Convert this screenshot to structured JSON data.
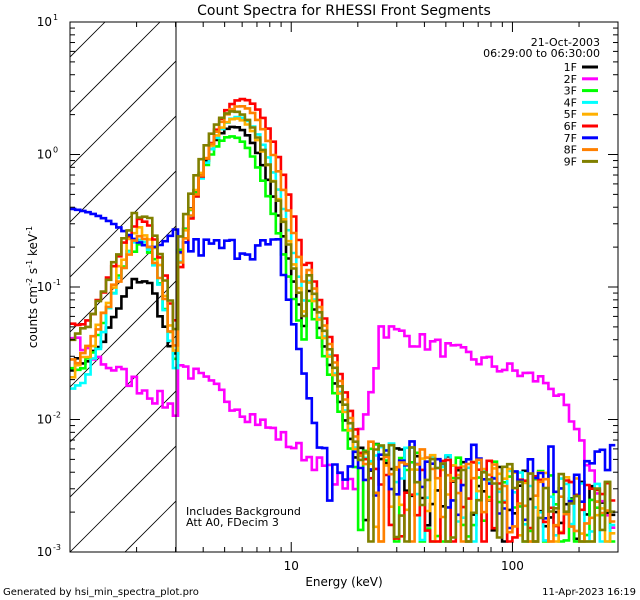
{
  "chart_data": {
    "type": "line",
    "title": "Count Spectra for RHESSI Front Segments",
    "xlabel": "Energy (keV)",
    "ylabel_main": "counts cm",
    "ylabel_sup1": "-2",
    "ylabel_mid": " s",
    "ylabel_sup2": "-1",
    "ylabel_mid2": " keV",
    "ylabel_sup3": "-1",
    "xscale": "log",
    "yscale": "log",
    "xlim": [
      1,
      300
    ],
    "ylim": [
      0.001,
      10
    ],
    "x_ticks": [
      {
        "value": 1,
        "label": ""
      },
      {
        "value": 10,
        "label": "10"
      },
      {
        "value": 100,
        "label": "100"
      }
    ],
    "y_ticks": [
      {
        "value": 0.001,
        "base": "10",
        "exp": "-3"
      },
      {
        "value": 0.01,
        "base": "10",
        "exp": "-2"
      },
      {
        "value": 0.1,
        "base": "10",
        "exp": "-1"
      },
      {
        "value": 1,
        "base": "10",
        "exp": "0"
      },
      {
        "value": 10,
        "base": "10",
        "exp": "1"
      }
    ],
    "hatched_region": [
      1,
      3
    ],
    "date": "21-Oct-2003",
    "time_range": "06:29:00 to 06:30:00",
    "annotations": [
      "Includes Background",
      "Att A0, FDecim 3"
    ],
    "footer_left": "Generated by hsi_min_spectra_plot.pro",
    "footer_right": "11-Apr-2023 16:19",
    "legend": [
      {
        "name": "1F",
        "color": "#000000"
      },
      {
        "name": "2F",
        "color": "#ff00ff"
      },
      {
        "name": "3F",
        "color": "#00ff00"
      },
      {
        "name": "4F",
        "color": "#00ffff"
      },
      {
        "name": "5F",
        "color": "#ffb000"
      },
      {
        "name": "6F",
        "color": "#ff0000"
      },
      {
        "name": "7F",
        "color": "#0000ff"
      },
      {
        "name": "8F",
        "color": "#ff8000"
      },
      {
        "name": "9F",
        "color": "#808000"
      }
    ],
    "series_params": {
      "1F": {
        "peak": 1.6,
        "low": 0.09,
        "dip": 0.025,
        "shift": 0.0
      },
      "2F": {
        "peak": 0.015,
        "low": 0.04,
        "dip": 0.009,
        "shift": 0.0
      },
      "3F": {
        "peak": 1.35,
        "low": 0.2,
        "dip": 0.02,
        "shift": -0.01
      },
      "4F": {
        "peak": 1.9,
        "low": 0.2,
        "dip": 0.015,
        "shift": 0.02
      },
      "5F": {
        "peak": 1.85,
        "low": 0.25,
        "dip": 0.02,
        "shift": 0.01
      },
      "6F": {
        "peak": 2.6,
        "low": 0.25,
        "dip": 0.05,
        "shift": 0.04
      },
      "7F": {
        "peak": 0.3,
        "low": 0.3,
        "dip": 0.2,
        "shift": 0.0
      },
      "8F": {
        "peak": 2.3,
        "low": 0.2,
        "dip": 0.025,
        "shift": 0.03
      },
      "9F": {
        "peak": 2.1,
        "low": 0.33,
        "dip": 0.035,
        "shift": 0.0
      }
    }
  }
}
